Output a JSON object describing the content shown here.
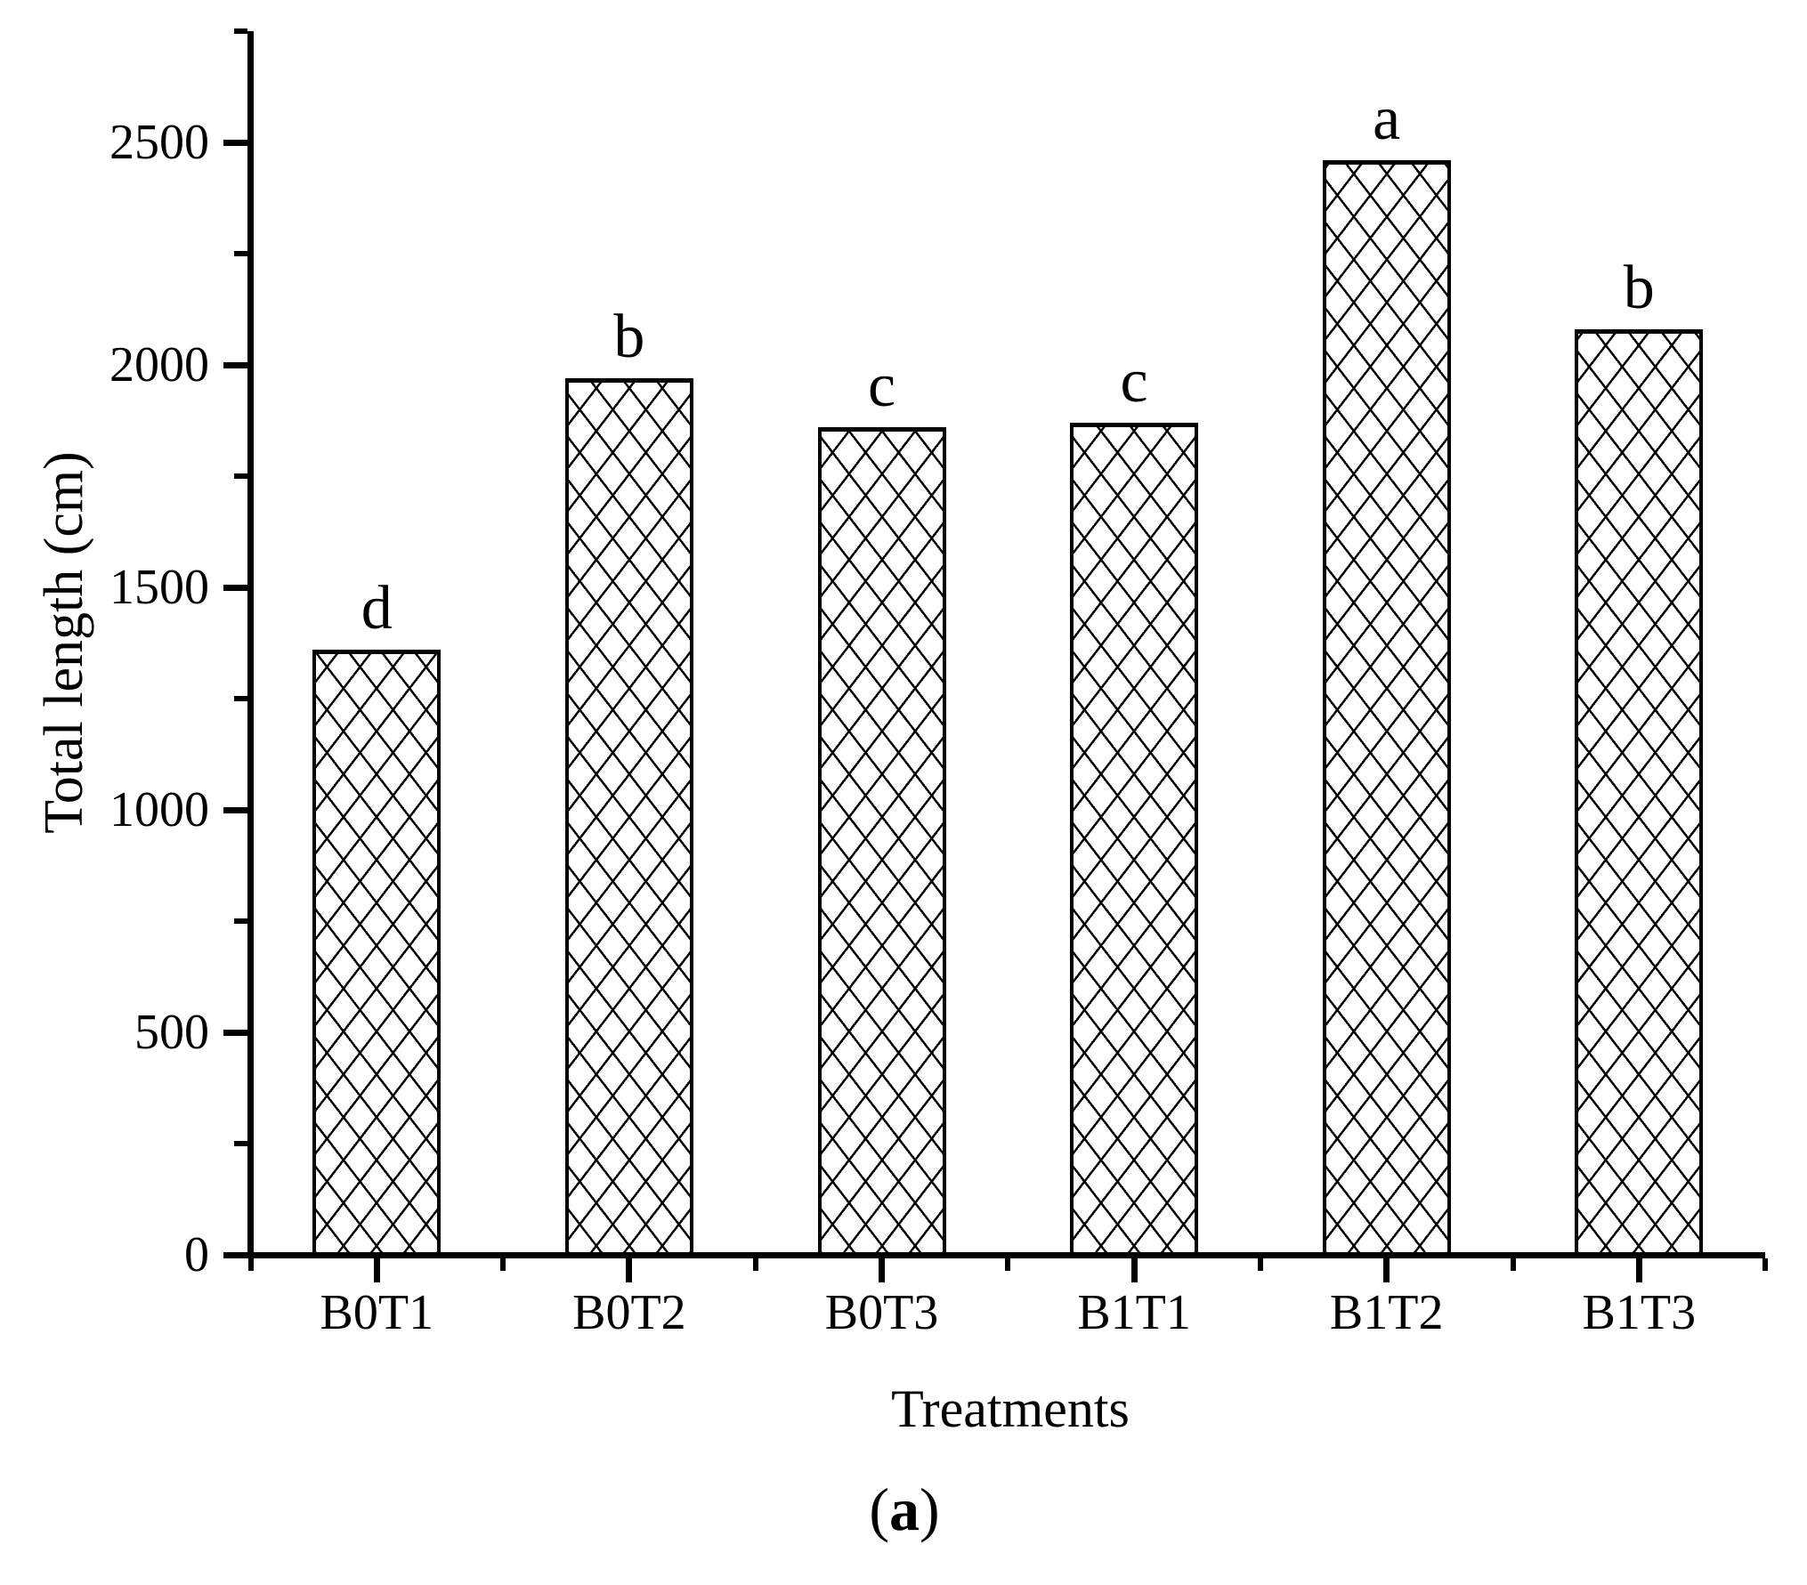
{
  "figure": {
    "background_color": "#ffffff",
    "ink_color": "#000000",
    "caption": {
      "open": "(",
      "letter": "a",
      "close": ")"
    }
  },
  "chart_data": {
    "type": "bar",
    "title": "",
    "categories": [
      "B0T1",
      "B0T2",
      "B0T3",
      "B1T1",
      "B1T2",
      "B1T3"
    ],
    "values": [
      1360,
      1970,
      1860,
      1870,
      2460,
      2080
    ],
    "significance_letters": [
      "d",
      "b",
      "c",
      "c",
      "a",
      "b"
    ],
    "xlabel": "Treatments",
    "ylabel": "Total length (cm)",
    "ylim": [
      0,
      2750
    ],
    "yticks_major": [
      0,
      500,
      1000,
      1500,
      2000,
      2500
    ],
    "yticks_minor": [
      250,
      750,
      1250,
      1750,
      2250,
      2750
    ],
    "grid": false,
    "legend": null,
    "bar_fill_style": "black diagonal crosshatch on white",
    "bar_border_color": "#000000"
  }
}
